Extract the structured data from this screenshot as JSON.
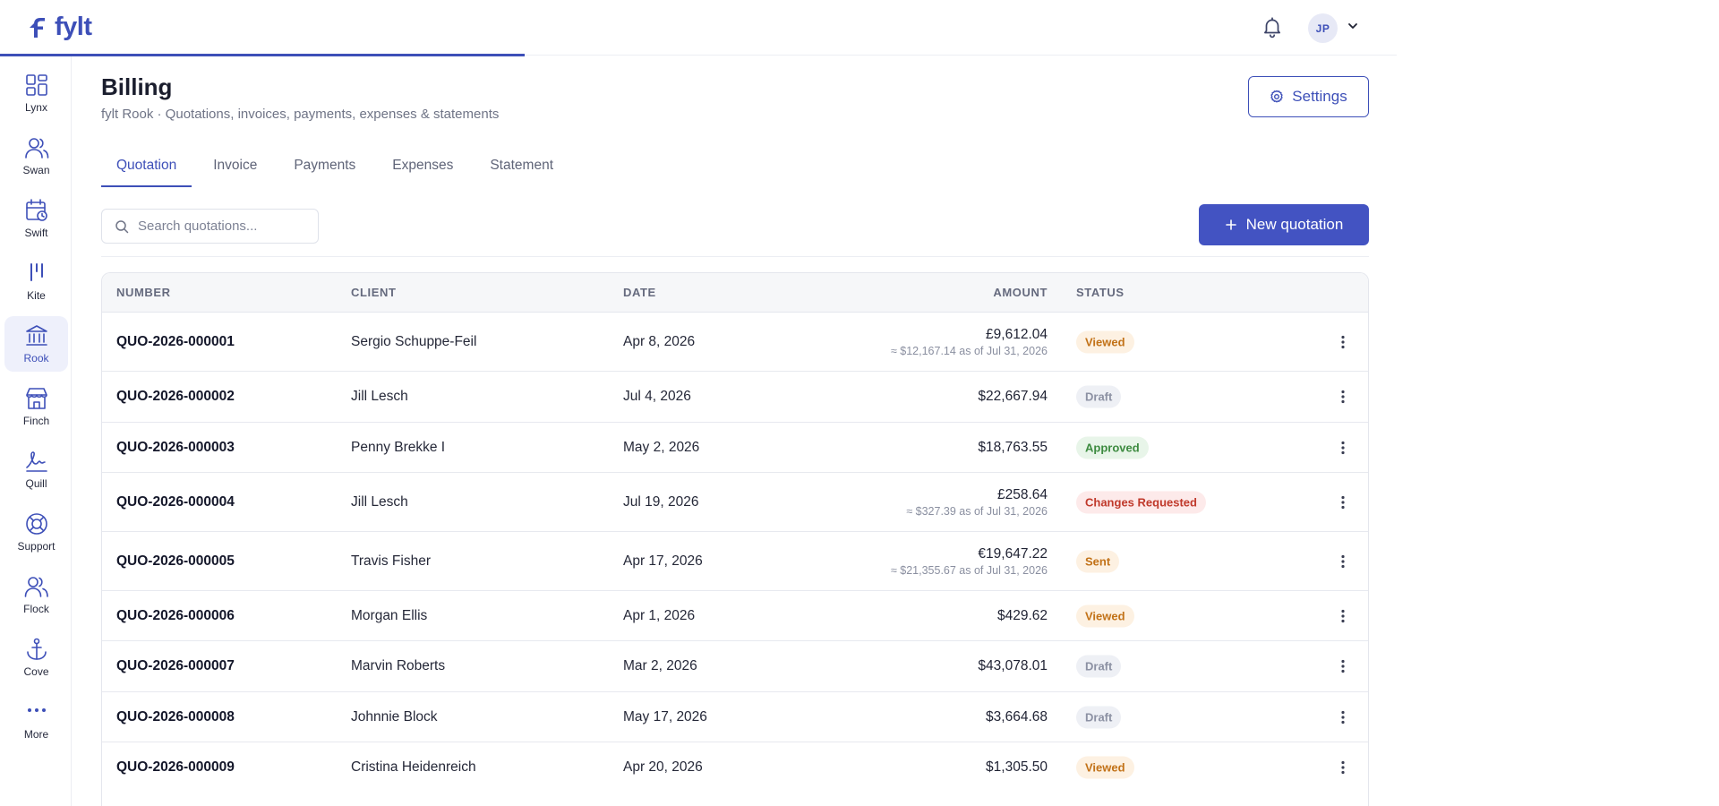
{
  "app": {
    "logo_text": "fylt",
    "user_initials": "JP"
  },
  "sidebar": {
    "items": [
      {
        "label": "Lynx",
        "icon": "grid-icon"
      },
      {
        "label": "Swan",
        "icon": "users-icon"
      },
      {
        "label": "Swift",
        "icon": "calendar-icon"
      },
      {
        "label": "Kite",
        "icon": "bars-icon"
      },
      {
        "label": "Rook",
        "icon": "bank-icon"
      },
      {
        "label": "Finch",
        "icon": "store-icon"
      },
      {
        "label": "Quill",
        "icon": "signature-icon"
      },
      {
        "label": "Support",
        "icon": "lifebuoy-icon"
      },
      {
        "label": "Flock",
        "icon": "group-icon"
      },
      {
        "label": "Cove",
        "icon": "anchor-icon"
      },
      {
        "label": "More",
        "icon": "more-icon"
      }
    ],
    "active": "Rook"
  },
  "header": {
    "title": "Billing",
    "subtitle": "fylt Rook · Quotations, invoices, payments, expenses & statements",
    "settings_label": "Settings"
  },
  "tabs": [
    {
      "label": "Quotation",
      "active": true
    },
    {
      "label": "Invoice",
      "active": false
    },
    {
      "label": "Payments",
      "active": false
    },
    {
      "label": "Expenses",
      "active": false
    },
    {
      "label": "Statement",
      "active": false
    }
  ],
  "toolbar": {
    "search_placeholder": "Search quotations...",
    "new_label": "New quotation"
  },
  "table": {
    "columns": {
      "number": "NUMBER",
      "client": "CLIENT",
      "date": "DATE",
      "amount": "AMOUNT",
      "status": "STATUS"
    },
    "rows": [
      {
        "number": "QUO-2026-000001",
        "client": "Sergio Schuppe-Feil",
        "date": "Apr 8, 2026",
        "amount": "£9,612.04",
        "amount_sub": "≈ $12,167.14 as of Jul 31, 2026",
        "status": "Viewed",
        "status_type": "viewed"
      },
      {
        "number": "QUO-2026-000002",
        "client": "Jill Lesch",
        "date": "Jul 4, 2026",
        "amount": "$22,667.94",
        "amount_sub": "",
        "status": "Draft",
        "status_type": "draft"
      },
      {
        "number": "QUO-2026-000003",
        "client": "Penny Brekke I",
        "date": "May 2, 2026",
        "amount": "$18,763.55",
        "amount_sub": "",
        "status": "Approved",
        "status_type": "approved"
      },
      {
        "number": "QUO-2026-000004",
        "client": "Jill Lesch",
        "date": "Jul 19, 2026",
        "amount": "£258.64",
        "amount_sub": "≈ $327.39 as of Jul 31, 2026",
        "status": "Changes Requested",
        "status_type": "changes"
      },
      {
        "number": "QUO-2026-000005",
        "client": "Travis Fisher",
        "date": "Apr 17, 2026",
        "amount": "€19,647.22",
        "amount_sub": "≈ $21,355.67 as of Jul 31, 2026",
        "status": "Sent",
        "status_type": "sent"
      },
      {
        "number": "QUO-2026-000006",
        "client": "Morgan Ellis",
        "date": "Apr 1, 2026",
        "amount": "$429.62",
        "amount_sub": "",
        "status": "Viewed",
        "status_type": "viewed"
      },
      {
        "number": "QUO-2026-000007",
        "client": "Marvin Roberts",
        "date": "Mar 2, 2026",
        "amount": "$43,078.01",
        "amount_sub": "",
        "status": "Draft",
        "status_type": "draft"
      },
      {
        "number": "QUO-2026-000008",
        "client": "Johnnie Block",
        "date": "May 17, 2026",
        "amount": "$3,664.68",
        "amount_sub": "",
        "status": "Draft",
        "status_type": "draft"
      },
      {
        "number": "QUO-2026-000009",
        "client": "Cristina Heidenreich",
        "date": "Apr 20, 2026",
        "amount": "$1,305.50",
        "amount_sub": "",
        "status": "Viewed",
        "status_type": "viewed"
      }
    ]
  },
  "colors": {
    "accent": "#3d4fb8",
    "primary_button": "#4353c2"
  }
}
